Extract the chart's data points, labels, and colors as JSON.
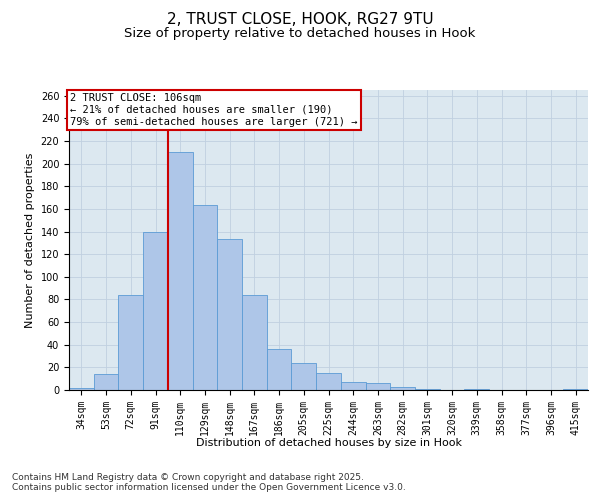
{
  "title_line1": "2, TRUST CLOSE, HOOK, RG27 9TU",
  "title_line2": "Size of property relative to detached houses in Hook",
  "xlabel": "Distribution of detached houses by size in Hook",
  "ylabel": "Number of detached properties",
  "categories": [
    "34sqm",
    "53sqm",
    "72sqm",
    "91sqm",
    "110sqm",
    "129sqm",
    "148sqm",
    "167sqm",
    "186sqm",
    "205sqm",
    "225sqm",
    "244sqm",
    "263sqm",
    "282sqm",
    "301sqm",
    "320sqm",
    "339sqm",
    "358sqm",
    "377sqm",
    "396sqm",
    "415sqm"
  ],
  "values": [
    2,
    14,
    84,
    140,
    210,
    163,
    133,
    84,
    36,
    24,
    15,
    7,
    6,
    3,
    1,
    0,
    1,
    0,
    0,
    0,
    1
  ],
  "bar_color": "#aec6e8",
  "bar_edge_color": "#5b9bd5",
  "vline_x_index": 4,
  "vline_color": "#cc0000",
  "annotation_text": "2 TRUST CLOSE: 106sqm\n← 21% of detached houses are smaller (190)\n79% of semi-detached houses are larger (721) →",
  "annotation_box_color": "#ffffff",
  "annotation_box_edge": "#cc0000",
  "ylim": [
    0,
    265
  ],
  "yticks": [
    0,
    20,
    40,
    60,
    80,
    100,
    120,
    140,
    160,
    180,
    200,
    220,
    240,
    260
  ],
  "grid_color": "#c0d0e0",
  "background_color": "#dce8f0",
  "footer_text": "Contains HM Land Registry data © Crown copyright and database right 2025.\nContains public sector information licensed under the Open Government Licence v3.0.",
  "title_fontsize": 11,
  "subtitle_fontsize": 9.5,
  "axis_label_fontsize": 8,
  "tick_fontsize": 7,
  "annotation_fontsize": 7.5,
  "footer_fontsize": 6.5
}
